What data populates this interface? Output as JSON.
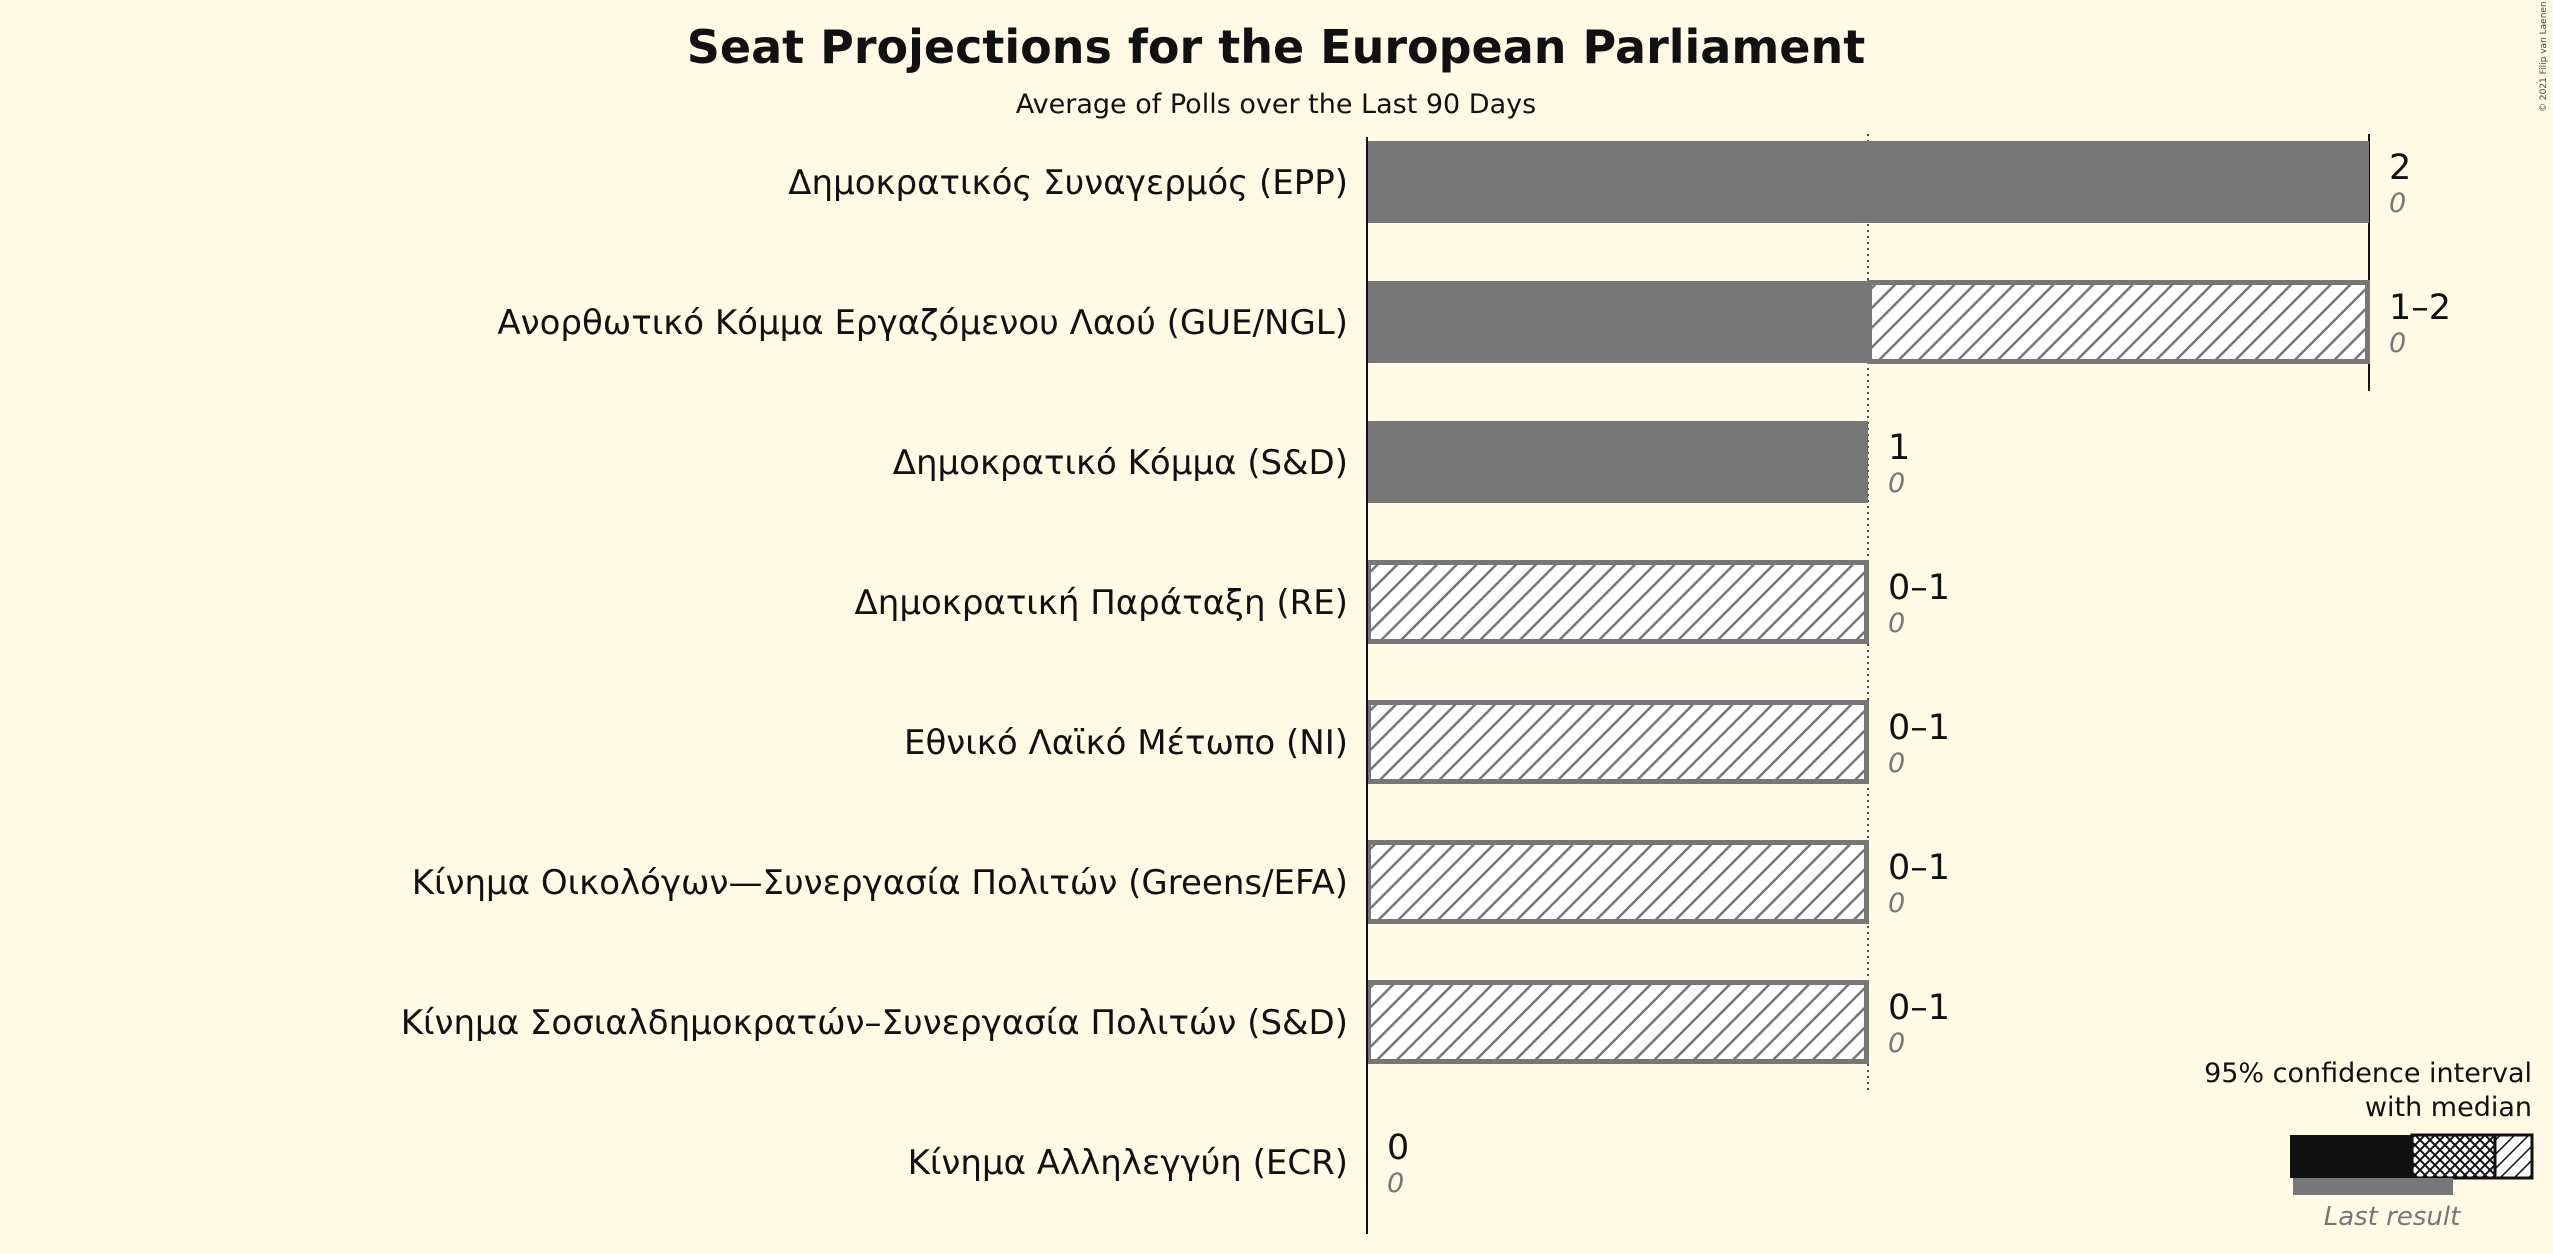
{
  "title": "Seat Projections for the European Parliament",
  "subtitle": "Average of Polls over the Last 90 Days",
  "copyright": "© 2021 Filip van Laenen",
  "colors": {
    "background": "#fffbe6",
    "solid": "#777777",
    "hatch": "#777777",
    "text": "#111111",
    "last_result_text": "#777777"
  },
  "chart_data": {
    "type": "bar",
    "orientation": "horizontal",
    "title": "Seat Projections for the European Parliament",
    "subtitle": "Average of Polls over the Last 90 Days",
    "xlim": [
      0,
      2
    ],
    "gridlines": [
      1,
      2
    ],
    "rows": [
      {
        "party": "Δημοκρατικός Συναγερμός (EPP)",
        "low": 2,
        "median": 2,
        "high": 2,
        "range_label": "2",
        "last_result": 0,
        "last_label": "0"
      },
      {
        "party": "Ανορθωτικό Κόμμα Εργαζόμενου Λαού (GUE/NGL)",
        "low": 1,
        "median": 1,
        "high": 2,
        "range_label": "1–2",
        "last_result": 0,
        "last_label": "0"
      },
      {
        "party": "Δημοκρατικό Κόμμα (S&D)",
        "low": 1,
        "median": 1,
        "high": 1,
        "range_label": "1",
        "last_result": 0,
        "last_label": "0"
      },
      {
        "party": "Δημοκρατική Παράταξη (RE)",
        "low": 0,
        "median": 0,
        "high": 1,
        "range_label": "0–1",
        "last_result": 0,
        "last_label": "0"
      },
      {
        "party": "Εθνικό Λαϊκό Μέτωπο (NI)",
        "low": 0,
        "median": 0,
        "high": 1,
        "range_label": "0–1",
        "last_result": 0,
        "last_label": "0"
      },
      {
        "party": "Κίνημα Οικολόγων—Συνεργασία Πολιτών (Greens/EFA)",
        "low": 0,
        "median": 0,
        "high": 1,
        "range_label": "0–1",
        "last_result": 0,
        "last_label": "0"
      },
      {
        "party": "Κίνημα Σοσιαλδημοκρατών–Συνεργασία Πολιτών (S&D)",
        "low": 0,
        "median": 0,
        "high": 1,
        "range_label": "0–1",
        "last_result": 0,
        "last_label": "0"
      },
      {
        "party": "Κίνημα Αλληλεγγύη (ECR)",
        "low": 0,
        "median": 0,
        "high": 0,
        "range_label": "0",
        "last_result": 0,
        "last_label": "0"
      }
    ]
  },
  "legend": {
    "line1": "95% confidence interval",
    "line2": "with median",
    "last_result": "Last result"
  }
}
